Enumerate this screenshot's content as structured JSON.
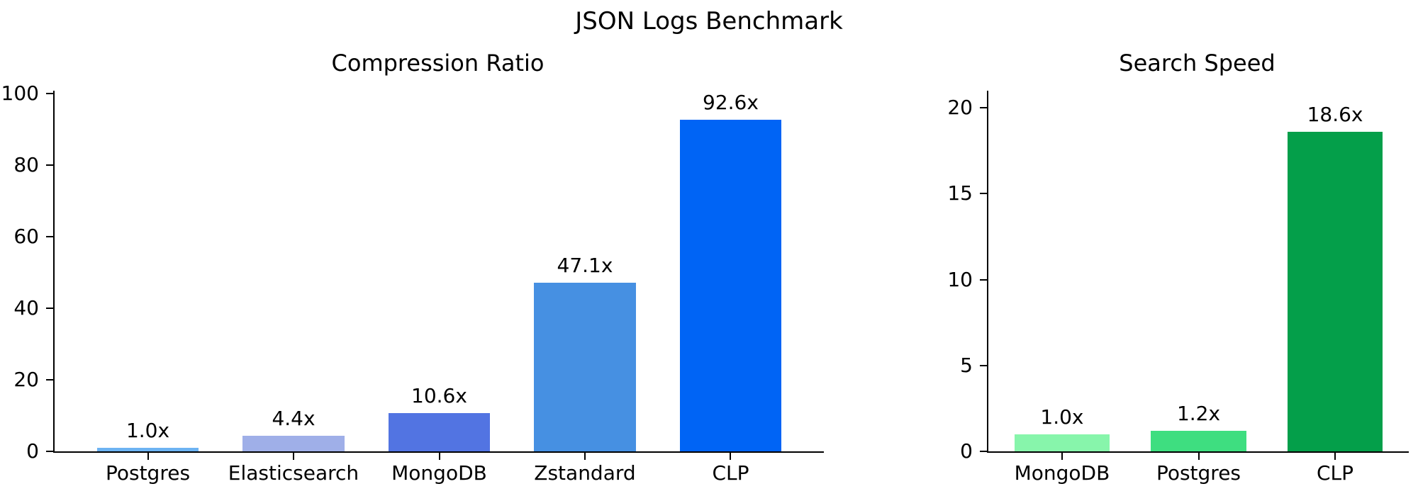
{
  "title": "JSON Logs Benchmark",
  "text_color": "#000000",
  "background_color": "#ffffff",
  "chart_data": [
    {
      "type": "bar",
      "title": "Compression Ratio",
      "categories": [
        "Postgres",
        "Elasticsearch",
        "MongoDB",
        "Zstandard",
        "CLP"
      ],
      "values": [
        1.0,
        4.4,
        10.6,
        47.1,
        92.6
      ],
      "bar_labels": [
        "1.0x",
        "4.4x",
        "10.6x",
        "47.1x",
        "92.6x"
      ],
      "colors": [
        "#6db3f2",
        "#9fafe8",
        "#5274e2",
        "#4690e2",
        "#0064f5"
      ],
      "yticks": [
        0,
        20,
        40,
        60,
        80,
        100
      ],
      "ylim": [
        0,
        100.8
      ],
      "xlabel": "",
      "ylabel": "",
      "grid": false,
      "legend": null
    },
    {
      "type": "bar",
      "title": "Search Speed",
      "categories": [
        "MongoDB",
        "Postgres",
        "CLP"
      ],
      "values": [
        1.0,
        1.2,
        18.6
      ],
      "bar_labels": [
        "1.0x",
        "1.2x",
        "18.6x"
      ],
      "colors": [
        "#87f5ab",
        "#3ede80",
        "#049f4a"
      ],
      "yticks": [
        0,
        5,
        10,
        15,
        20
      ],
      "ylim": [
        0,
        21
      ],
      "xlabel": "",
      "ylabel": "",
      "grid": false,
      "legend": null
    }
  ]
}
